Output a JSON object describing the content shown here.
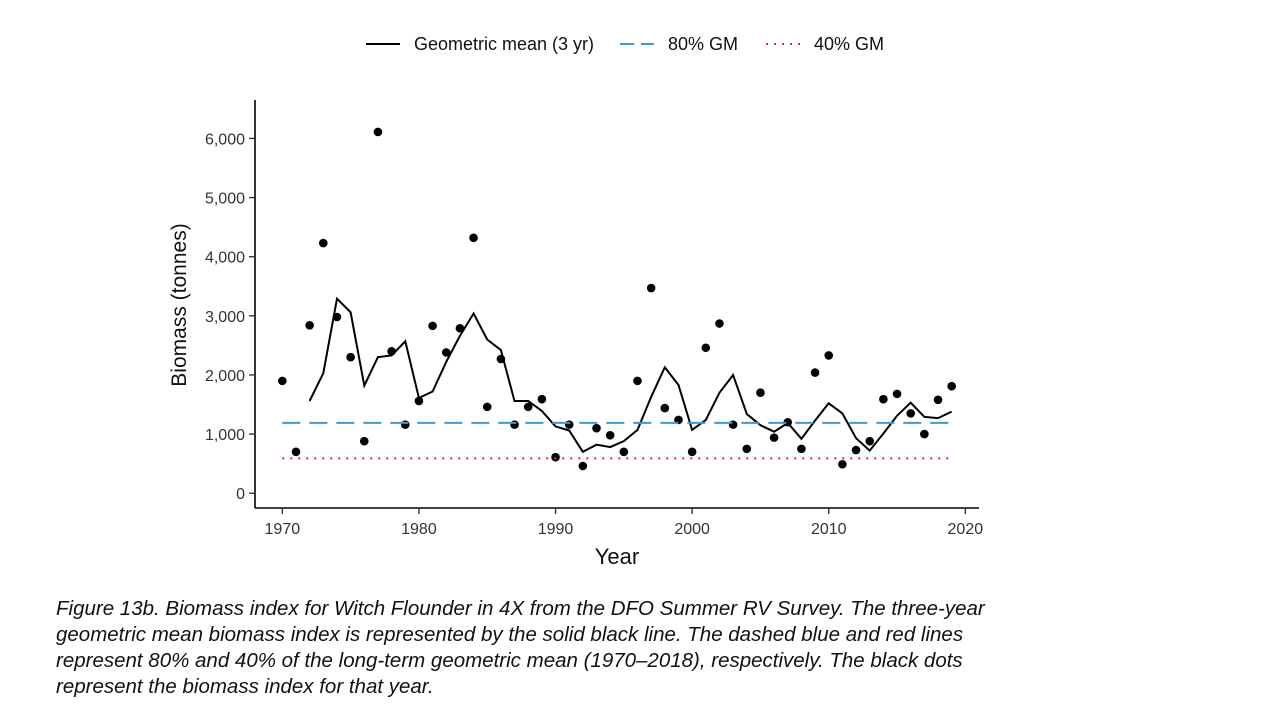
{
  "chart_data": {
    "type": "line",
    "xlabel": "Year",
    "ylabel": "Biomass (tonnes)",
    "xlim": [
      1968,
      2021
    ],
    "ylim": [
      -250,
      6650
    ],
    "x_ticks": [
      1970,
      1980,
      1990,
      2000,
      2010,
      2020
    ],
    "y_ticks": [
      0,
      1000,
      2000,
      3000,
      4000,
      5000,
      6000
    ],
    "x_tick_labels": [
      "1970",
      "1980",
      "1990",
      "2000",
      "2010",
      "2020"
    ],
    "y_tick_labels": [
      "0",
      "1,000",
      "2,000",
      "3,000",
      "4,000",
      "5,000",
      "6,000"
    ],
    "grid": false,
    "legend_position": "top",
    "legend": [
      {
        "label": "Geometric mean (3 yr)",
        "style": "solid",
        "color": "#000000"
      },
      {
        "label": "80% GM",
        "style": "dashed",
        "color": "#3a9ad9"
      },
      {
        "label": "40% GM",
        "style": "dotted",
        "color": "#e03030"
      }
    ],
    "series": [
      {
        "name": "Geometric mean (3 yr)",
        "style": "line",
        "color": "#000000",
        "x": [
          1972,
          1973,
          1974,
          1975,
          1976,
          1977,
          1978,
          1979,
          1980,
          1981,
          1982,
          1983,
          1984,
          1985,
          1986,
          1987,
          1988,
          1989,
          1990,
          1991,
          1992,
          1993,
          1994,
          1995,
          1996,
          1997,
          1998,
          1999,
          2000,
          2001,
          2002,
          2003,
          2004,
          2005,
          2006,
          2007,
          2008,
          2009,
          2010,
          2011,
          2012,
          2013,
          2014,
          2015,
          2016,
          2017,
          2018,
          2019
        ],
        "values": [
          1560,
          2030,
          3290,
          3060,
          1820,
          2300,
          2330,
          2570,
          1610,
          1720,
          2220,
          2660,
          3040,
          2600,
          2420,
          1560,
          1560,
          1390,
          1130,
          1060,
          700,
          820,
          780,
          880,
          1070,
          1630,
          2130,
          1830,
          1070,
          1240,
          1700,
          2000,
          1340,
          1150,
          1040,
          1190,
          920,
          1230,
          1520,
          1350,
          930,
          720,
          1010,
          1310,
          1530,
          1290,
          1270,
          1380
        ]
      },
      {
        "name": "Biomass index",
        "style": "points",
        "color": "#000000",
        "x": [
          1970,
          1971,
          1972,
          1973,
          1974,
          1975,
          1976,
          1977,
          1978,
          1979,
          1980,
          1981,
          1982,
          1983,
          1984,
          1985,
          1986,
          1987,
          1988,
          1989,
          1990,
          1991,
          1992,
          1993,
          1994,
          1995,
          1996,
          1997,
          1998,
          1999,
          2000,
          2001,
          2002,
          2003,
          2004,
          2005,
          2006,
          2007,
          2008,
          2009,
          2010,
          2011,
          2012,
          2013,
          2014,
          2015,
          2016,
          2017,
          2018,
          2019
        ],
        "values": [
          1900,
          700,
          2840,
          4230,
          2980,
          2300,
          880,
          6110,
          2400,
          1160,
          1560,
          2830,
          2380,
          2790,
          4320,
          1460,
          2270,
          1160,
          1460,
          1590,
          610,
          1160,
          460,
          1100,
          980,
          700,
          1900,
          3470,
          1440,
          1240,
          700,
          2460,
          2870,
          1160,
          750,
          1700,
          940,
          1200,
          750,
          2040,
          2330,
          490,
          730,
          880,
          1590,
          1680,
          1350,
          1000,
          1580,
          1810
        ]
      },
      {
        "name": "80% GM",
        "style": "dashed",
        "color": "#3a9ad9",
        "x": [
          1970,
          2019
        ],
        "values": [
          1190,
          1190
        ]
      },
      {
        "name": "40% GM",
        "style": "dotted",
        "color": "#e03030",
        "x": [
          1970,
          2019
        ],
        "values": [
          590,
          590
        ]
      }
    ]
  },
  "caption": {
    "lines": [
      "Figure 13b. Biomass index for Witch Flounder in 4X from the DFO Summer RV Survey. The three-year",
      "geometric mean biomass index is represented by the solid black line. The dashed blue and red lines",
      "represent 80% and 40% of the long-term geometric mean (1970–2018), respectively. The black dots",
      "represent the biomass index for that year."
    ]
  }
}
